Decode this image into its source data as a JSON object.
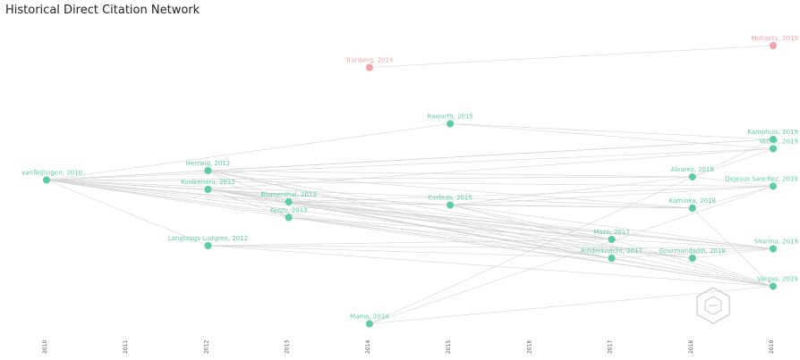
{
  "title": "Historical Direct Citation Network",
  "colors": {
    "main": "#5ccba8",
    "outlier": "#f4a3a8",
    "edge": "#d3d3d3",
    "background": "#ffffff"
  },
  "watermark_icon": "hexagon-logo-icon",
  "chart_data": {
    "type": "network",
    "title": "Historical Direct Citation Network",
    "xaxis": {
      "ticks": [
        "2010",
        "2011",
        "2012",
        "2013",
        "2014",
        "2015",
        "2016",
        "2017",
        "2018",
        "2019"
      ]
    },
    "nodes": [
      {
        "id": "n1",
        "label": "vanTeijlingen, 2010",
        "year": 2010,
        "row": 0.49,
        "group": "main"
      },
      {
        "id": "n2",
        "label": "Hertwig, 2012",
        "year": 2012,
        "row": 0.46,
        "group": "main"
      },
      {
        "id": "n3",
        "label": "Kusikenaru, 2012",
        "year": 2012,
        "row": 0.52,
        "group": "main"
      },
      {
        "id": "n4",
        "label": "Langlaugs-Ludgren, 2012",
        "year": 2012,
        "row": 0.7,
        "group": "main"
      },
      {
        "id": "n5",
        "label": "Blumenthal, 2013",
        "year": 2013,
        "row": 0.56,
        "group": "main"
      },
      {
        "id": "n6",
        "label": "Kerzo, 2013",
        "year": 2013,
        "row": 0.61,
        "group": "main"
      },
      {
        "id": "n7",
        "label": "Tranberg, 2014",
        "year": 2014,
        "row": 0.13,
        "group": "outlier"
      },
      {
        "id": "n8",
        "label": "Mamo, 2014",
        "year": 2014,
        "row": 0.95,
        "group": "main"
      },
      {
        "id": "n9",
        "label": "Raworth, 2015",
        "year": 2015,
        "row": 0.31,
        "group": "main"
      },
      {
        "id": "n10",
        "label": "Corbula, 2015",
        "year": 2015,
        "row": 0.57,
        "group": "main"
      },
      {
        "id": "n11",
        "label": "Mazo, 2017",
        "year": 2017,
        "row": 0.68,
        "group": "main"
      },
      {
        "id": "n12",
        "label": "Rinderknecht, 2017",
        "year": 2017,
        "row": 0.74,
        "group": "main"
      },
      {
        "id": "n13",
        "label": "Alvarez, 2018",
        "year": 2018,
        "row": 0.48,
        "group": "main"
      },
      {
        "id": "n14",
        "label": "Kaminka, 2018",
        "year": 2018,
        "row": 0.58,
        "group": "main"
      },
      {
        "id": "n15",
        "label": "Gourmandaddi, 2018",
        "year": 2018,
        "row": 0.74,
        "group": "main"
      },
      {
        "id": "n16",
        "label": "Mohanty, 2019",
        "year": 2019,
        "row": 0.06,
        "group": "outlier"
      },
      {
        "id": "n17",
        "label": "Kamphuis, 2019",
        "year": 2019,
        "row": 0.36,
        "group": "main"
      },
      {
        "id": "n18",
        "label": "Vetter, 2019",
        "year": 2019,
        "row": 0.39,
        "group": "main"
      },
      {
        "id": "n19",
        "label": "Dejesus Sanchez, 2019",
        "year": 2019,
        "row": 0.51,
        "group": "main"
      },
      {
        "id": "n20",
        "label": "Sharma, 2019",
        "year": 2019,
        "row": 0.71,
        "group": "main"
      },
      {
        "id": "n21",
        "label": "Vargas, 2019",
        "year": 2019,
        "row": 0.83,
        "group": "main"
      }
    ],
    "edges": [
      [
        "n2",
        "n1"
      ],
      [
        "n3",
        "n1"
      ],
      [
        "n4",
        "n1"
      ],
      [
        "n5",
        "n1"
      ],
      [
        "n6",
        "n1"
      ],
      [
        "n9",
        "n1"
      ],
      [
        "n10",
        "n1"
      ],
      [
        "n11",
        "n1"
      ],
      [
        "n12",
        "n1"
      ],
      [
        "n13",
        "n1"
      ],
      [
        "n14",
        "n1"
      ],
      [
        "n15",
        "n1"
      ],
      [
        "n17",
        "n1"
      ],
      [
        "n18",
        "n1"
      ],
      [
        "n19",
        "n1"
      ],
      [
        "n20",
        "n1"
      ],
      [
        "n21",
        "n1"
      ],
      [
        "n5",
        "n2"
      ],
      [
        "n6",
        "n2"
      ],
      [
        "n11",
        "n2"
      ],
      [
        "n12",
        "n2"
      ],
      [
        "n13",
        "n2"
      ],
      [
        "n14",
        "n2"
      ],
      [
        "n21",
        "n2"
      ],
      [
        "n5",
        "n3"
      ],
      [
        "n6",
        "n3"
      ],
      [
        "n10",
        "n3"
      ],
      [
        "n11",
        "n3"
      ],
      [
        "n12",
        "n3"
      ],
      [
        "n15",
        "n3"
      ],
      [
        "n20",
        "n3"
      ],
      [
        "n21",
        "n3"
      ],
      [
        "n11",
        "n4"
      ],
      [
        "n12",
        "n4"
      ],
      [
        "n20",
        "n4"
      ],
      [
        "n21",
        "n4"
      ],
      [
        "n10",
        "n5"
      ],
      [
        "n11",
        "n5"
      ],
      [
        "n12",
        "n5"
      ],
      [
        "n14",
        "n5"
      ],
      [
        "n15",
        "n5"
      ],
      [
        "n20",
        "n5"
      ],
      [
        "n21",
        "n5"
      ],
      [
        "n11",
        "n6"
      ],
      [
        "n12",
        "n6"
      ],
      [
        "n15",
        "n6"
      ],
      [
        "n21",
        "n6"
      ],
      [
        "n16",
        "n7"
      ],
      [
        "n17",
        "n9"
      ],
      [
        "n18",
        "n9"
      ],
      [
        "n11",
        "n10"
      ],
      [
        "n13",
        "n10"
      ],
      [
        "n14",
        "n10"
      ],
      [
        "n19",
        "n10"
      ],
      [
        "n20",
        "n10"
      ],
      [
        "n21",
        "n10"
      ],
      [
        "n12",
        "n11"
      ],
      [
        "n20",
        "n11"
      ],
      [
        "n21",
        "n11"
      ],
      [
        "n20",
        "n12"
      ],
      [
        "n21",
        "n12"
      ],
      [
        "n17",
        "n13"
      ],
      [
        "n18",
        "n13"
      ],
      [
        "n19",
        "n13"
      ],
      [
        "n19",
        "n14"
      ],
      [
        "n21",
        "n14"
      ],
      [
        "n13",
        "n8"
      ],
      [
        "n19",
        "n8"
      ],
      [
        "n21",
        "n8"
      ],
      [
        "n17",
        "n2"
      ],
      [
        "n18",
        "n3"
      ],
      [
        "n19",
        "n5"
      ],
      [
        "n20",
        "n15"
      ],
      [
        "n21",
        "n15"
      ]
    ]
  }
}
